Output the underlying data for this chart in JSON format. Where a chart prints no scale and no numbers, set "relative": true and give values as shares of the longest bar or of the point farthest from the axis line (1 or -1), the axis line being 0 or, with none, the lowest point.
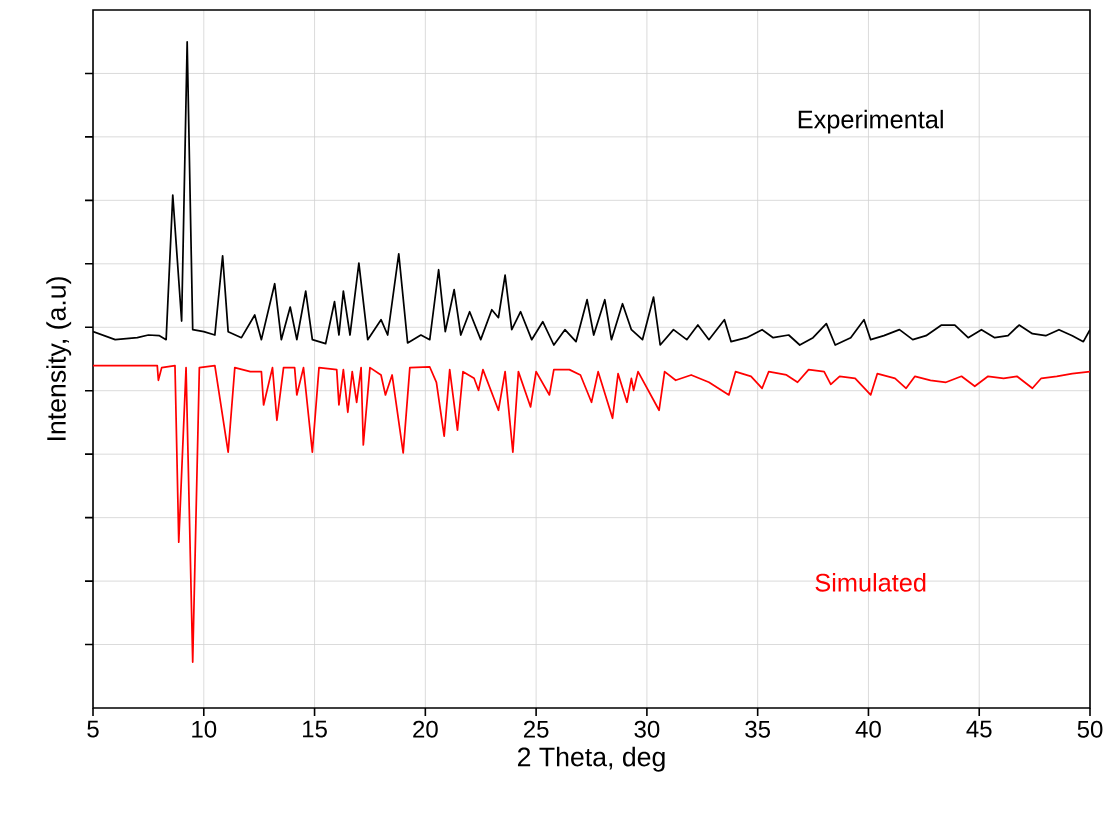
{
  "chart_data": {
    "type": "line",
    "relative": true,
    "xlabel": "2 Theta, deg",
    "ylabel": "Intensity, (a.u)",
    "xlim": [
      5,
      50
    ],
    "xticks": [
      5,
      10,
      15,
      20,
      25,
      30,
      35,
      40,
      45,
      50
    ],
    "grid": true,
    "marker": "none",
    "line_style": "solid",
    "series": [
      {
        "name": "Experimental",
        "color": "#000000",
        "x": [
          5.0,
          6,
          7,
          7.5,
          8.0,
          8.3,
          8.6,
          9.0,
          9.25,
          9.5,
          10,
          10.5,
          10.85,
          11.1,
          11.7,
          12.3,
          12.6,
          13.2,
          13.5,
          13.9,
          14.2,
          14.6,
          14.9,
          15.5,
          15.9,
          16.1,
          16.3,
          16.6,
          17.0,
          17.4,
          18.0,
          18.3,
          18.8,
          19.2,
          19.8,
          20.2,
          20.6,
          20.9,
          21.3,
          21.6,
          22.0,
          22.5,
          23.0,
          23.3,
          23.6,
          23.9,
          24.3,
          24.8,
          25.3,
          25.8,
          26.3,
          26.8,
          27.3,
          27.6,
          28.1,
          28.4,
          28.9,
          29.3,
          29.8,
          30.3,
          30.6,
          31.2,
          31.8,
          32.3,
          32.8,
          33.5,
          33.8,
          34.5,
          35.2,
          35.7,
          36.4,
          36.9,
          37.5,
          38.1,
          38.5,
          39.2,
          39.8,
          40.1,
          40.7,
          41.4,
          42.0,
          42.6,
          43.3,
          43.9,
          44.5,
          45.1,
          45.7,
          46.3,
          46.8,
          47.4,
          48.0,
          48.6,
          49.2,
          49.7,
          50
        ],
        "values": [
          0.565,
          0.553,
          0.556,
          0.56,
          0.559,
          0.553,
          0.77,
          0.581,
          1.0,
          0.568,
          0.565,
          0.56,
          0.679,
          0.565,
          0.556,
          0.59,
          0.553,
          0.637,
          0.553,
          0.602,
          0.553,
          0.626,
          0.553,
          0.547,
          0.61,
          0.56,
          0.626,
          0.56,
          0.668,
          0.553,
          0.583,
          0.56,
          0.682,
          0.548,
          0.56,
          0.553,
          0.658,
          0.565,
          0.628,
          0.56,
          0.595,
          0.553,
          0.598,
          0.586,
          0.65,
          0.568,
          0.595,
          0.553,
          0.58,
          0.545,
          0.568,
          0.55,
          0.613,
          0.56,
          0.613,
          0.553,
          0.607,
          0.568,
          0.553,
          0.617,
          0.545,
          0.568,
          0.553,
          0.575,
          0.553,
          0.583,
          0.55,
          0.556,
          0.568,
          0.556,
          0.56,
          0.545,
          0.556,
          0.577,
          0.545,
          0.556,
          0.583,
          0.553,
          0.559,
          0.568,
          0.553,
          0.559,
          0.575,
          0.575,
          0.556,
          0.568,
          0.556,
          0.559,
          0.575,
          0.562,
          0.559,
          0.568,
          0.559,
          0.55,
          0.568
        ]
      },
      {
        "name": "Simulated",
        "color": "#ff0000",
        "x": [
          5.0,
          7.9,
          7.95,
          8.1,
          8.7,
          8.87,
          9.2,
          9.5,
          9.8,
          10.5,
          11.1,
          11.4,
          12.1,
          12.6,
          12.7,
          13.1,
          13.3,
          13.6,
          14.1,
          14.2,
          14.5,
          14.9,
          15.2,
          16.0,
          16.1,
          16.3,
          16.5,
          16.7,
          16.9,
          17.1,
          17.2,
          17.5,
          18.0,
          18.2,
          18.5,
          19.0,
          19.3,
          20.2,
          20.5,
          20.85,
          21.1,
          21.45,
          21.7,
          22.2,
          22.4,
          22.6,
          23.3,
          23.6,
          23.95,
          24.2,
          24.75,
          25.0,
          25.6,
          25.8,
          26.5,
          27.0,
          27.5,
          27.8,
          28.45,
          28.7,
          29.1,
          29.3,
          29.4,
          29.6,
          30.55,
          30.8,
          31.3,
          32.0,
          32.8,
          33.7,
          34.0,
          34.7,
          35.2,
          35.5,
          36.3,
          36.8,
          37.3,
          38.0,
          38.3,
          38.7,
          39.4,
          40.1,
          40.4,
          41.2,
          41.7,
          42.1,
          42.8,
          43.5,
          44.2,
          44.8,
          45.4,
          46.1,
          46.7,
          47.4,
          47.8,
          48.5,
          49.2,
          50
        ],
        "values": [
          0.514,
          0.514,
          0.492,
          0.511,
          0.514,
          0.249,
          0.511,
          0.069,
          0.511,
          0.514,
          0.384,
          0.511,
          0.505,
          0.505,
          0.455,
          0.511,
          0.432,
          0.511,
          0.511,
          0.47,
          0.511,
          0.384,
          0.511,
          0.508,
          0.455,
          0.508,
          0.444,
          0.505,
          0.459,
          0.511,
          0.395,
          0.511,
          0.5,
          0.47,
          0.5,
          0.383,
          0.511,
          0.512,
          0.489,
          0.408,
          0.508,
          0.417,
          0.505,
          0.495,
          0.477,
          0.508,
          0.447,
          0.505,
          0.384,
          0.505,
          0.452,
          0.505,
          0.47,
          0.508,
          0.508,
          0.5,
          0.459,
          0.505,
          0.435,
          0.502,
          0.459,
          0.495,
          0.477,
          0.505,
          0.447,
          0.505,
          0.492,
          0.5,
          0.489,
          0.47,
          0.505,
          0.498,
          0.48,
          0.505,
          0.5,
          0.489,
          0.508,
          0.505,
          0.486,
          0.498,
          0.495,
          0.47,
          0.502,
          0.495,
          0.48,
          0.498,
          0.492,
          0.489,
          0.498,
          0.483,
          0.498,
          0.495,
          0.498,
          0.48,
          0.495,
          0.498,
          0.502,
          0.505
        ]
      }
    ]
  }
}
